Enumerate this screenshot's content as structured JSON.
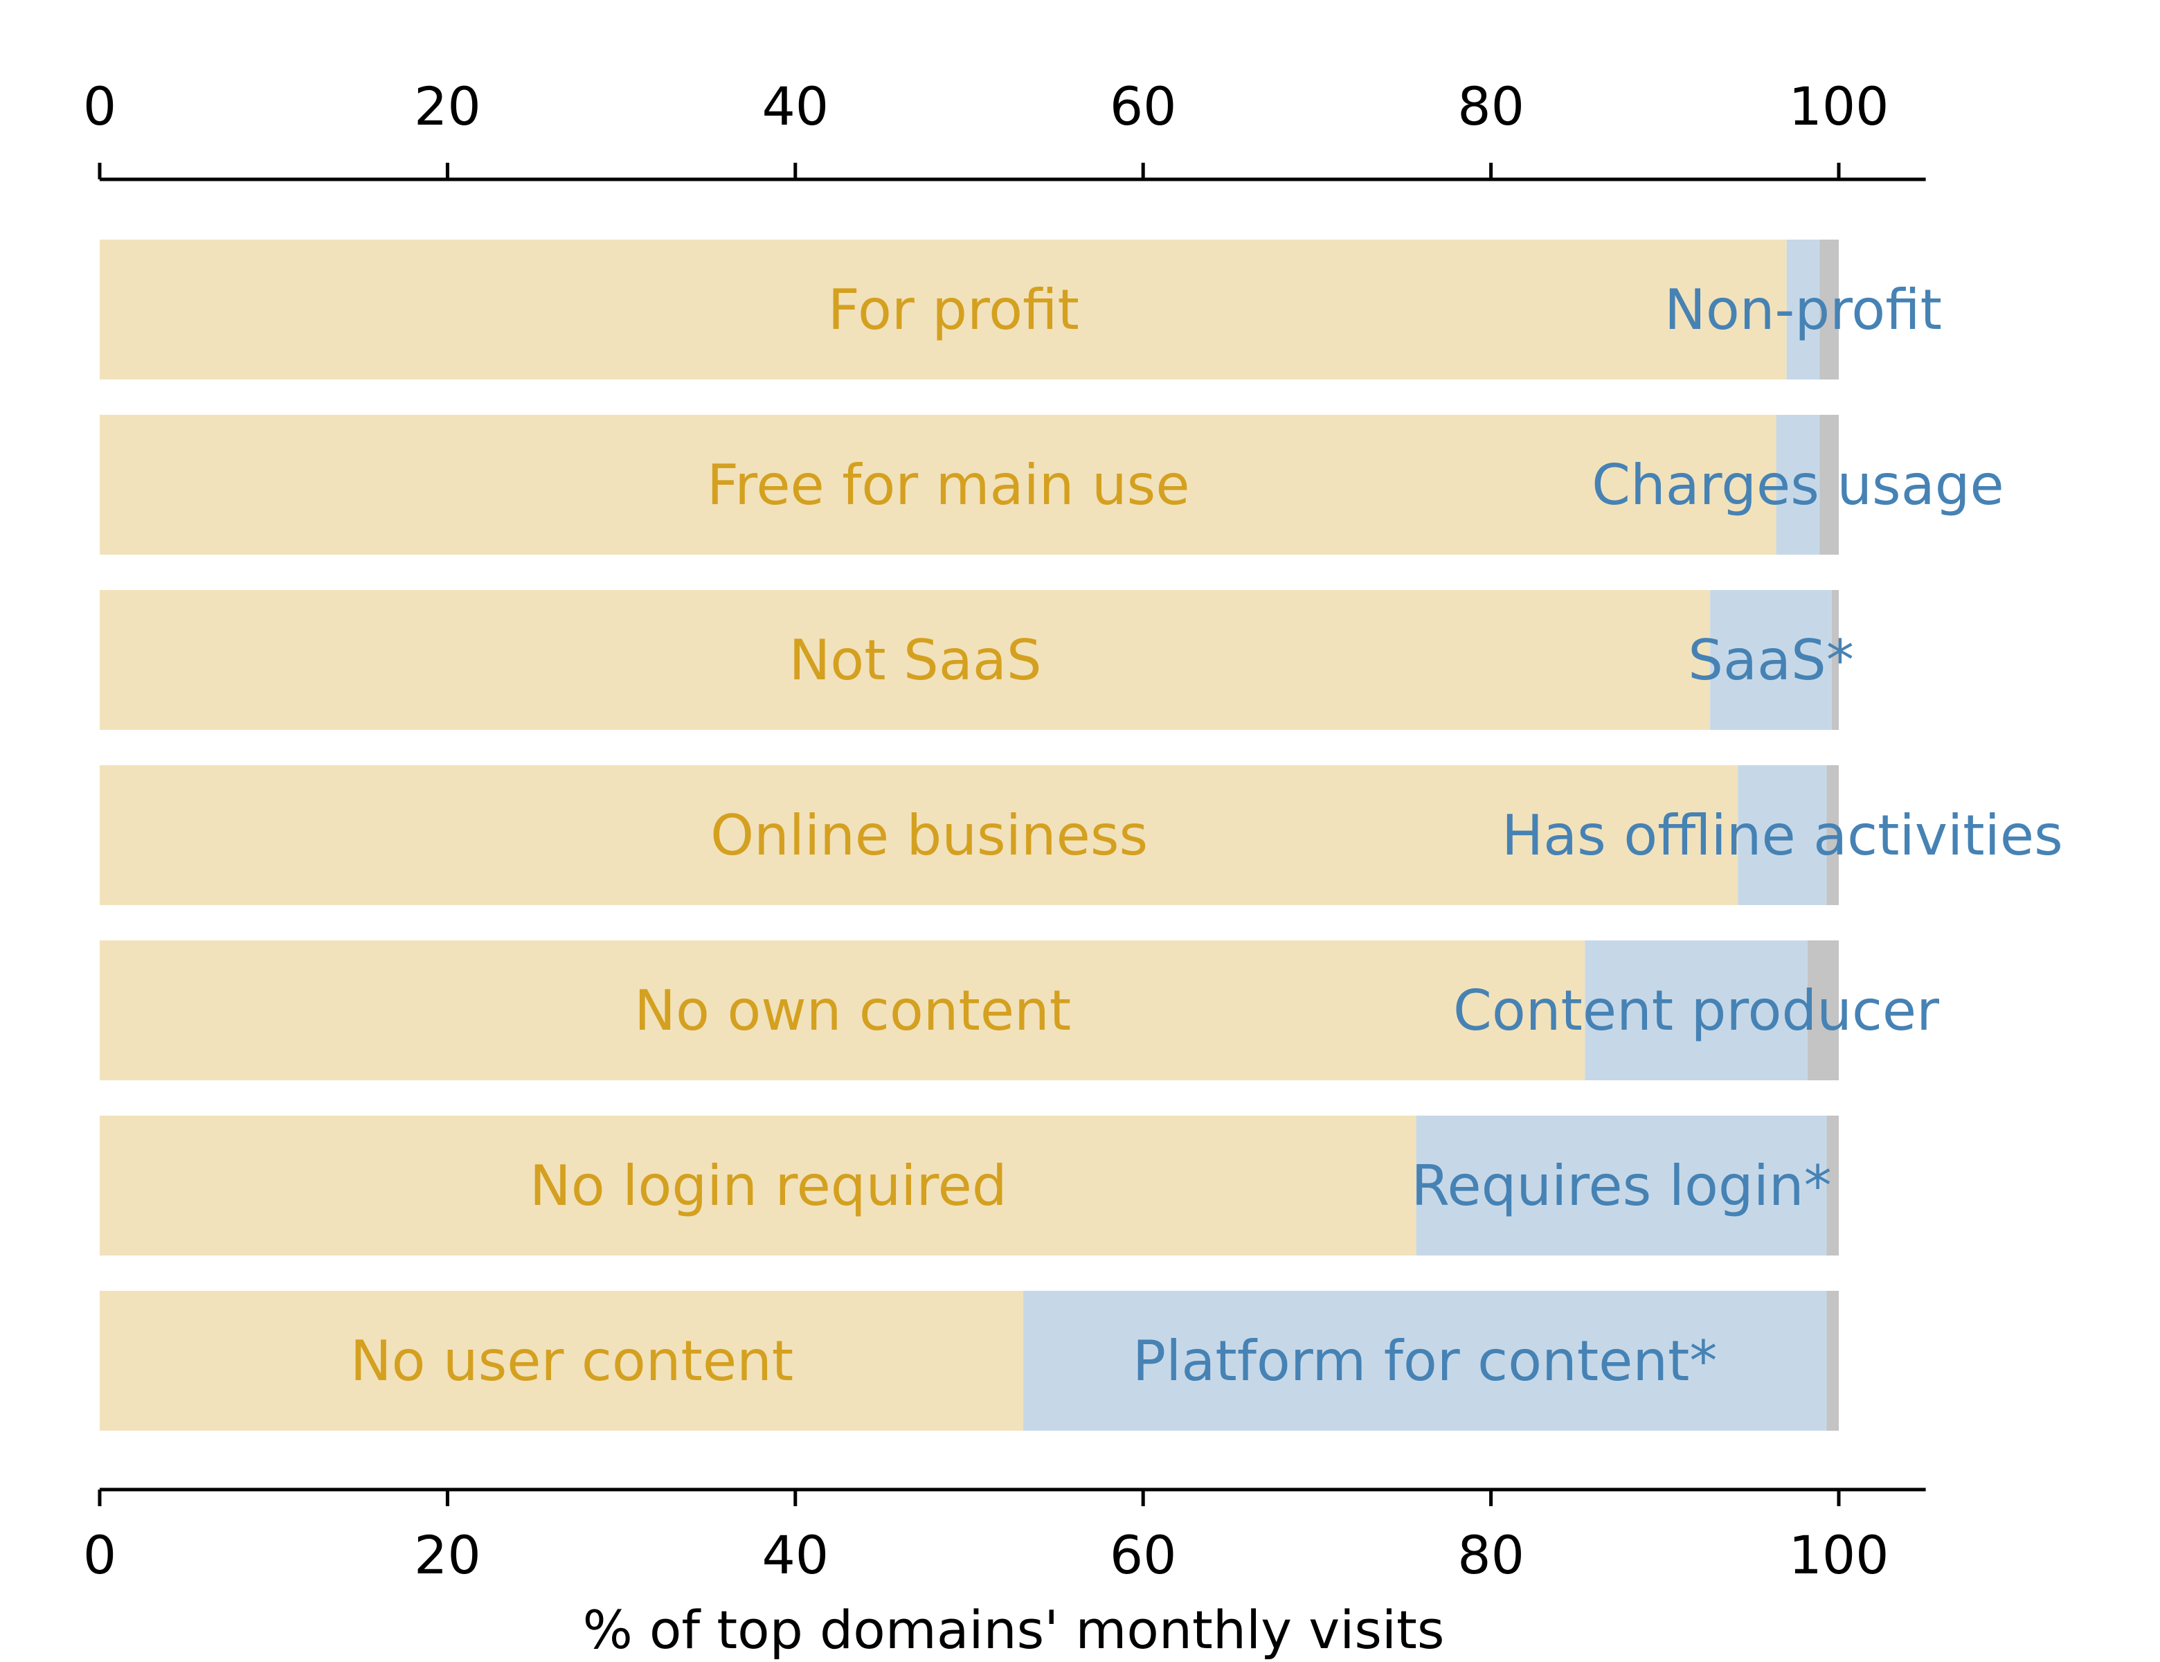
{
  "chart_data": {
    "type": "bar",
    "orientation": "horizontal",
    "stacked": true,
    "xlabel": "% of top domains' monthly visits",
    "ylabel": "",
    "title": "",
    "xlim": [
      0,
      105
    ],
    "xticks": [
      0,
      20,
      40,
      60,
      80,
      100
    ],
    "grid": false,
    "x_axis_positions": [
      "top",
      "bottom"
    ],
    "colors": {
      "primary_fill": "#f2e2bb",
      "primary_text": "#d4a020",
      "secondary_fill": "#c6d8e8",
      "secondary_text": "#4682b4",
      "unknown_fill": "#c4c4c4",
      "axis": "#000000"
    },
    "rows": [
      {
        "primary_label": "For profit",
        "primary_value": 97.0,
        "secondary_label": "Non-profit",
        "secondary_value": 1.9,
        "unknown_value": 1.1
      },
      {
        "primary_label": "Free for main use",
        "primary_value": 96.4,
        "secondary_label": "Charges usage",
        "secondary_value": 2.5,
        "unknown_value": 1.1
      },
      {
        "primary_label": "Not SaaS",
        "primary_value": 92.6,
        "secondary_label": "SaaS*",
        "secondary_value": 7.0,
        "unknown_value": 0.4
      },
      {
        "primary_label": "Online business",
        "primary_value": 94.2,
        "secondary_label": "Has offline activities",
        "secondary_value": 5.1,
        "unknown_value": 0.7
      },
      {
        "primary_label": "No own content",
        "primary_value": 85.4,
        "secondary_label": "Content producer",
        "secondary_value": 12.8,
        "unknown_value": 1.8
      },
      {
        "primary_label": "No login required",
        "primary_value": 75.7,
        "secondary_label": "Requires login*",
        "secondary_value": 23.6,
        "unknown_value": 0.7
      },
      {
        "primary_label": "No user content",
        "primary_value": 53.1,
        "secondary_label": "Platform for content*",
        "secondary_value": 46.2,
        "unknown_value": 0.7
      }
    ]
  }
}
